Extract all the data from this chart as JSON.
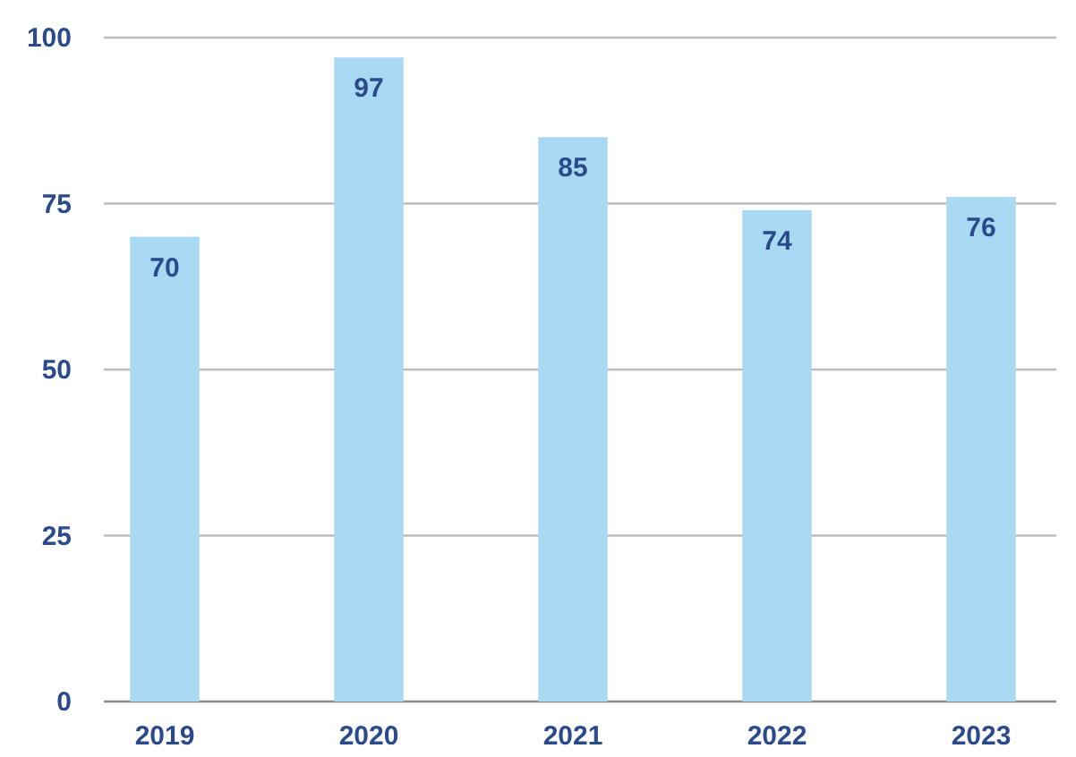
{
  "chart_data": {
    "type": "bar",
    "categories": [
      "2019",
      "2020",
      "2021",
      "2022",
      "2023"
    ],
    "values": [
      70,
      97,
      85,
      74,
      76
    ],
    "color": "#a9d9f2",
    "ylim": [
      0,
      100
    ],
    "yticks": [
      0,
      25,
      50,
      75,
      100
    ],
    "grid": "y",
    "data_labels": true
  }
}
